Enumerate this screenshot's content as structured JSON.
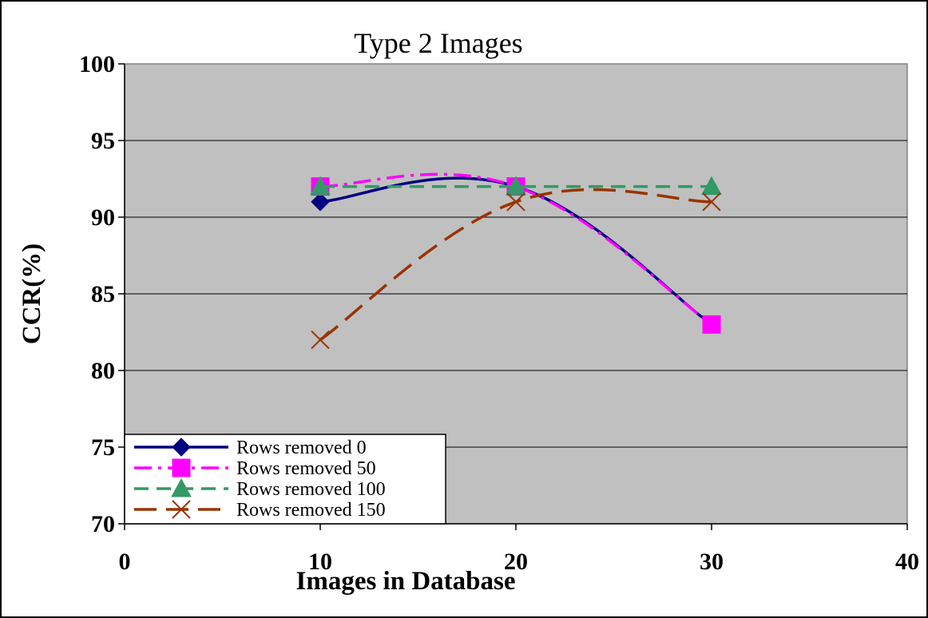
{
  "chart_data": {
    "type": "line",
    "title": "Type 2 Images",
    "xlabel": "Images in Database",
    "ylabel": "CCR(%)",
    "xlim": [
      0,
      40
    ],
    "ylim": [
      70,
      100
    ],
    "xticks": [
      "0",
      "10",
      "20",
      "30",
      "40"
    ],
    "yticks": [
      "70",
      "75",
      "80",
      "85",
      "90",
      "95",
      "100"
    ],
    "grid": "horizontal",
    "legend_position": "bottom-left",
    "x": [
      10,
      20,
      30
    ],
    "series": [
      {
        "name": "Rows removed 0",
        "values": [
          91,
          92,
          83
        ],
        "color": "#000080",
        "marker": "diamond",
        "dash": "solid"
      },
      {
        "name": "Rows removed 50",
        "values": [
          92,
          92,
          83
        ],
        "color": "#ff00ff",
        "marker": "square",
        "dash": "dash-dot"
      },
      {
        "name": "Rows removed 100",
        "values": [
          92,
          92,
          92
        ],
        "color": "#339966",
        "marker": "triangle",
        "dash": "dash"
      },
      {
        "name": "Rows removed 150",
        "values": [
          82,
          91,
          91
        ],
        "color": "#993300",
        "marker": "x",
        "dash": "long-dash"
      }
    ]
  }
}
